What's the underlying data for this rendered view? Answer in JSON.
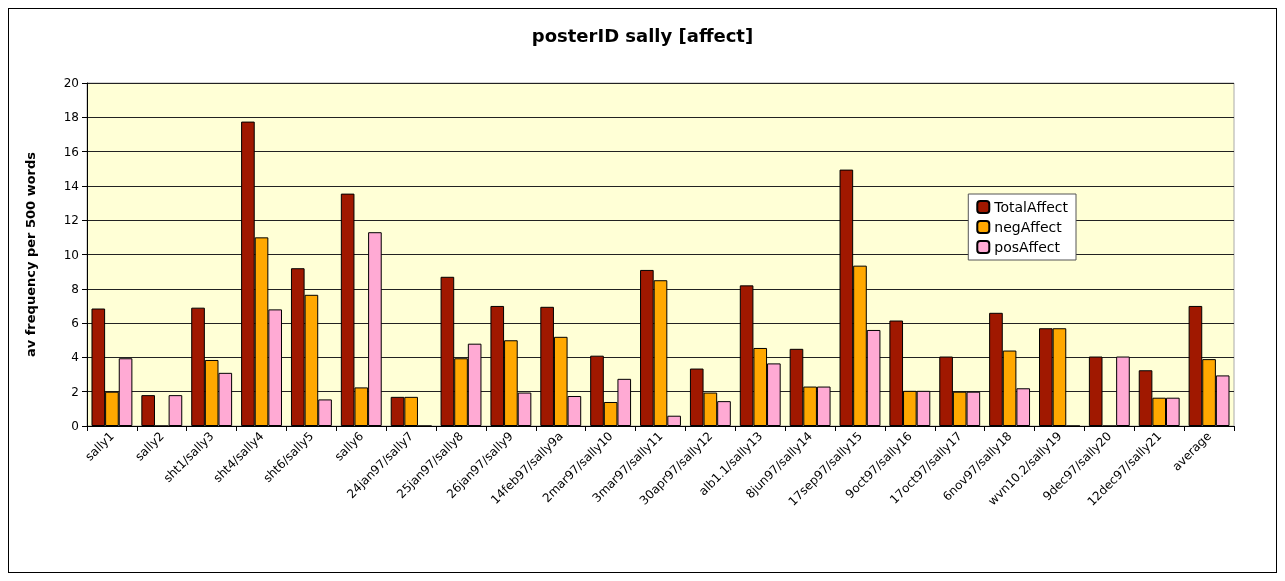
{
  "chart_data": {
    "type": "bar",
    "title": "posterID sally [affect]",
    "ylabel": "av frequency per 500 words",
    "categories": [
      "sally1",
      "sally2",
      "sht1/sally3",
      "sht4/sally4",
      "sht6/sally5",
      "sally6",
      "24jan97/sally7",
      "25jan97/sally8",
      "26jan97/sally9",
      "14feb97/sally9a",
      "2mar97/sally10",
      "3mar97/sally11",
      "30apr97/sally12",
      "alb1.1/sally13",
      "8jun97/sally14",
      "17sep97/sally15",
      "9oct97/sally16",
      "17oct97/sally17",
      "6nov97/sally18",
      "wvn10.2/sally19",
      "9dec97/sally20",
      "12dec97/sally21",
      "average"
    ],
    "series": [
      {
        "name": "TotalAffect",
        "color": "#a01800",
        "values": [
          6.85,
          1.8,
          6.9,
          17.75,
          9.2,
          13.55,
          1.7,
          8.7,
          7.0,
          6.95,
          4.1,
          9.1,
          3.35,
          8.2,
          4.5,
          14.95,
          6.15,
          4.05,
          6.6,
          5.7,
          4.05,
          3.25,
          7.0
        ]
      },
      {
        "name": "negAffect",
        "color": "#ffa800",
        "values": [
          2.0,
          0,
          3.85,
          11.0,
          7.65,
          2.25,
          1.7,
          3.95,
          5.0,
          5.2,
          1.4,
          8.5,
          1.95,
          4.55,
          2.3,
          9.35,
          2.05,
          2.0,
          4.4,
          5.7,
          0,
          1.65,
          3.9
        ]
      },
      {
        "name": "posAffect",
        "color": "#ffaad4",
        "values": [
          3.95,
          1.8,
          3.1,
          6.8,
          1.55,
          11.3,
          0,
          4.8,
          1.95,
          1.75,
          2.75,
          0.6,
          1.45,
          3.65,
          2.3,
          5.6,
          2.05,
          2.0,
          2.2,
          0,
          4.05,
          1.65,
          2.95
        ]
      }
    ],
    "ylim": [
      0,
      20
    ],
    "yticks": [
      0,
      2,
      4,
      6,
      8,
      10,
      12,
      14,
      16,
      18,
      20
    ],
    "grid": "y",
    "legend": "right"
  }
}
